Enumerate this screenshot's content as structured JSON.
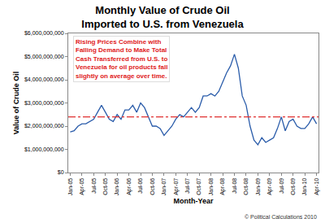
{
  "chart_data": {
    "type": "line",
    "title": "Monthly Value of Crude Oil\nImported to U.S. from Venezuela",
    "x_label": "Month-Year",
    "y_label": "Value of Crude Oil",
    "annotation": "Rising Prices Combine with\nFalling Demand to Make Total\nCash Transferred from U.S. to\nVenezuela for oil products fall\nslightly on average over time.",
    "credit": "© Political Calculations 2010",
    "categories": [
      "Jan-05",
      null,
      null,
      "Apr-05",
      null,
      null,
      "Jul-05",
      null,
      null,
      "Oct-05",
      null,
      null,
      "Jan-06",
      null,
      null,
      "Apr-06",
      null,
      null,
      "Jul-06",
      null,
      null,
      "Oct-06",
      null,
      null,
      "Jan-07",
      null,
      null,
      "Apr-07",
      null,
      null,
      "Jul-07",
      null,
      null,
      "Oct-07",
      null,
      null,
      "Jan-08",
      null,
      null,
      "Apr-08",
      null,
      null,
      "Jul-08",
      null,
      null,
      "Oct-08",
      null,
      null,
      "Jan-09",
      null,
      null,
      "Apr-09",
      null,
      null,
      "Jul-09",
      null,
      null,
      "Oct-09",
      null,
      null,
      "Jan-10",
      null,
      null,
      "Apr-10"
    ],
    "values": [
      1750000000,
      1800000000,
      2000000000,
      2100000000,
      2100000000,
      2200000000,
      2300000000,
      2600000000,
      2900000000,
      2600000000,
      2300000000,
      2200000000,
      2500000000,
      2300000000,
      2700000000,
      2700000000,
      2900000000,
      2600000000,
      3000000000,
      2800000000,
      2400000000,
      2000000000,
      2000000000,
      1900000000,
      1600000000,
      1800000000,
      2000000000,
      2300000000,
      2500000000,
      2400000000,
      2600000000,
      2800000000,
      2600000000,
      2800000000,
      3300000000,
      3300000000,
      3400000000,
      3300000000,
      3500000000,
      3900000000,
      4300000000,
      4600000000,
      5100000000,
      4500000000,
      3300000000,
      2900000000,
      2000000000,
      1400000000,
      1200000000,
      1500000000,
      1300000000,
      1400000000,
      1500000000,
      1900000000,
      2400000000,
      1800000000,
      2200000000,
      2300000000,
      2000000000,
      1900000000,
      1900000000,
      2100000000,
      2400000000,
      2100000000
    ],
    "color": "#2a5caa",
    "reference_line": {
      "value": 2400000000,
      "color": "#e03030",
      "line_style": "dashdot"
    },
    "ylim": [
      0,
      6000000000
    ],
    "yticks": [
      {
        "value": 0,
        "label": "$0"
      },
      {
        "value": 1000000000,
        "label": "$1,000,000,000"
      },
      {
        "value": 2000000000,
        "label": "$2,000,000,000"
      },
      {
        "value": 3000000000,
        "label": "$3,000,000,000"
      },
      {
        "value": 4000000000,
        "label": "$4,000,000,000"
      },
      {
        "value": 5000000000,
        "label": "$5,000,000,000"
      },
      {
        "value": 6000000000,
        "label": "$6,000,000,000"
      }
    ],
    "grid": false
  }
}
